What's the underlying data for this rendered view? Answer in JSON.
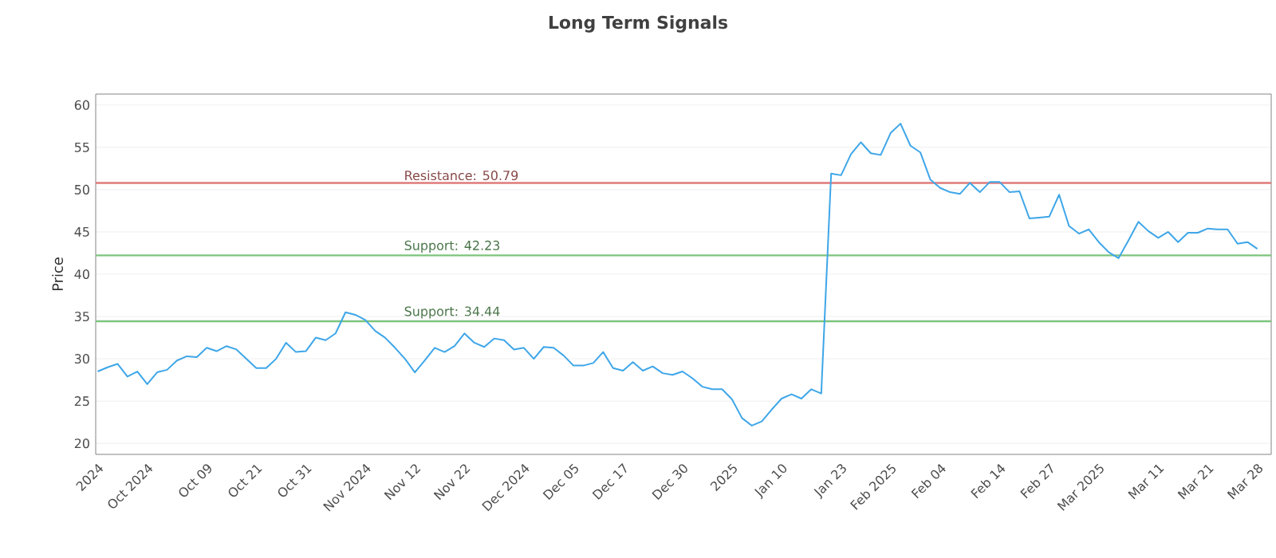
{
  "chart_data": {
    "type": "line",
    "title": "Long Term Signals",
    "ylabel": "Price",
    "categories": [
      "2024",
      null,
      null,
      null,
      null,
      "Oct 2024",
      null,
      null,
      null,
      null,
      null,
      "Oct 09",
      null,
      null,
      null,
      null,
      "Oct 21",
      null,
      null,
      null,
      null,
      "Oct 31",
      null,
      null,
      null,
      null,
      null,
      "Nov 2024",
      null,
      null,
      null,
      null,
      "Nov 12",
      null,
      null,
      null,
      null,
      "Nov 22",
      null,
      null,
      null,
      null,
      null,
      "Dec 2024",
      null,
      null,
      null,
      null,
      "Dec 05",
      null,
      null,
      null,
      null,
      "Dec 17",
      null,
      null,
      null,
      null,
      null,
      "Dec 30",
      null,
      null,
      null,
      null,
      "2025",
      null,
      null,
      null,
      null,
      "Jan 10",
      null,
      null,
      null,
      null,
      null,
      "Jan 23",
      null,
      null,
      null,
      null,
      "Feb 2025",
      null,
      null,
      null,
      null,
      "Feb 04",
      null,
      null,
      null,
      null,
      null,
      "Feb 14",
      null,
      null,
      null,
      null,
      "Feb 27",
      null,
      null,
      null,
      null,
      "Mar 2025",
      null,
      null,
      null,
      null,
      null,
      "Mar 11",
      null,
      null,
      null,
      null,
      "Mar 21",
      null,
      null,
      null,
      null,
      "Mar 28"
    ],
    "series": [
      {
        "color": "#3ea6e8",
        "values": [
          28.5,
          29.0,
          29.4,
          27.9,
          28.5,
          27.0,
          28.4,
          28.7,
          29.8,
          30.3,
          30.2,
          31.3,
          30.9,
          31.5,
          31.1,
          30.0,
          28.9,
          28.9,
          30.0,
          31.9,
          30.8,
          30.9,
          32.5,
          32.2,
          33.0,
          35.5,
          35.2,
          34.6,
          33.3,
          32.5,
          31.3,
          30.0,
          28.4,
          29.8,
          31.3,
          30.8,
          31.5,
          33.0,
          31.9,
          31.4,
          32.4,
          32.2,
          31.1,
          31.3,
          30.0,
          31.4,
          31.3,
          30.4,
          29.2,
          29.2,
          29.5,
          30.8,
          28.9,
          28.6,
          29.6,
          28.6,
          29.1,
          28.3,
          28.1,
          28.5,
          27.7,
          26.7,
          26.4,
          26.4,
          25.2,
          23.0,
          22.1,
          22.6,
          24.0,
          25.3,
          25.8,
          25.3,
          26.4,
          25.9,
          51.9,
          51.7,
          54.2,
          55.6,
          54.3,
          54.1,
          56.7,
          57.8,
          55.2,
          54.4,
          51.2,
          50.2,
          49.7,
          49.5,
          50.8,
          49.7,
          50.9,
          50.9,
          49.7,
          49.8,
          46.6,
          46.7,
          46.8,
          49.4,
          45.7,
          44.8,
          45.3,
          43.8,
          42.6,
          41.9,
          44.0,
          46.2,
          45.1,
          44.3,
          45.0,
          43.8,
          44.9,
          44.9,
          45.4,
          45.3,
          45.3,
          43.6,
          43.8,
          43.0
        ]
      }
    ],
    "ylim": [
      18.7,
      61.3
    ],
    "yticks": [
      20,
      25,
      30,
      35,
      40,
      45,
      50,
      55,
      60
    ],
    "grid": "y",
    "marker": "none",
    "line_style": "solid",
    "ref_lines": [
      {
        "axis": "y",
        "value": 50.79,
        "label": "Resistance: 50.79",
        "color": "#e07a7a"
      },
      {
        "axis": "y",
        "value": 42.23,
        "label": "Support: 42.23",
        "color": "#7cc47c"
      },
      {
        "axis": "y",
        "value": 34.44,
        "label": "Support: 34.44",
        "color": "#7cc47c"
      }
    ]
  }
}
